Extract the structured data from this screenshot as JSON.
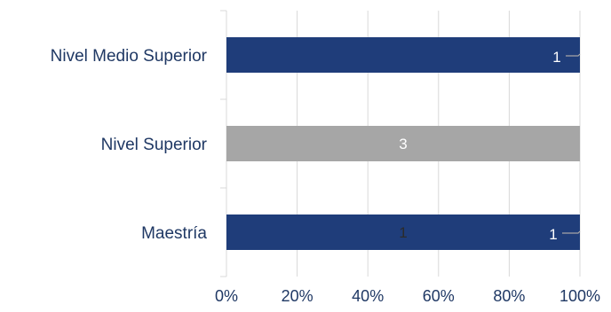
{
  "chart_data": {
    "type": "bar",
    "orientation": "horizontal",
    "stacked": "100%",
    "categories": [
      "Nivel Medio Superior",
      "Nivel Superior",
      "Maestría"
    ],
    "series": [
      {
        "values": [
          1,
          0,
          1
        ],
        "color": "#1f3d7a"
      },
      {
        "values": [
          0,
          3,
          0
        ],
        "color": "#a6a6a6"
      },
      {
        "values": [
          0,
          0,
          1
        ],
        "color": "#1f3d7a"
      }
    ],
    "data_labels": [
      {
        "category": "Nivel Medio Superior",
        "text": "1",
        "color": "#ffffff"
      },
      {
        "category": "Nivel Superior",
        "text": "3",
        "color": "#ffffff"
      },
      {
        "category": "Maestría",
        "text": "1",
        "color": "#2b2b2b"
      },
      {
        "category": "Maestría",
        "text": "1",
        "color": "#ffffff"
      }
    ],
    "x_ticks": [
      "0%",
      "20%",
      "40%",
      "60%",
      "80%",
      "100%"
    ],
    "xlim": [
      0,
      100
    ],
    "grid": true,
    "legend": "none"
  }
}
